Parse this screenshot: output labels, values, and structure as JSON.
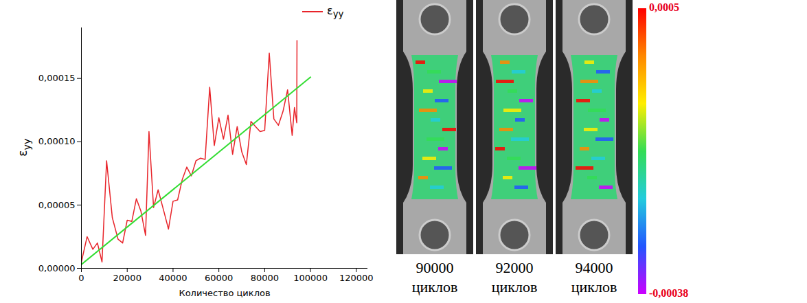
{
  "chart_data": {
    "type": "line",
    "x_label": "Количество циклов",
    "y_label": "εyy",
    "xlim": [
      0,
      125000
    ],
    "ylim": [
      0,
      0.00019
    ],
    "xticks": [
      0,
      20000,
      40000,
      60000,
      80000,
      100000,
      120000
    ],
    "yticks": [
      {
        "value": 0,
        "label": "0,00000"
      },
      {
        "value": 5e-05,
        "label": "0,00005"
      },
      {
        "value": 0.0001,
        "label": "0,00010"
      },
      {
        "value": 0.00015,
        "label": "0,00015"
      }
    ],
    "grid": false,
    "legend": "top-right",
    "series": [
      {
        "name": "εyy",
        "color": "#e8242a",
        "type": "line",
        "x": [
          0,
          2500,
          5000,
          7000,
          9000,
          11000,
          13500,
          16000,
          18000,
          20000,
          22000,
          24000,
          26000,
          28000,
          29500,
          31500,
          33500,
          36000,
          38000,
          40000,
          42000,
          44000,
          46000,
          48000,
          50000,
          52000,
          54000,
          56000,
          58000,
          60000,
          62000,
          64000,
          66000,
          68000,
          70000,
          72000,
          74000,
          76000,
          78000,
          80000,
          82000,
          84000,
          86000,
          88000,
          90000,
          92000,
          93000,
          94000,
          94100
        ],
        "values": [
          5e-06,
          2.5e-05,
          1.5e-05,
          2e-05,
          5e-06,
          8.5e-05,
          4e-05,
          2.3e-05,
          2e-05,
          3.8e-05,
          3.7e-05,
          5.5e-05,
          4.5e-05,
          2.6e-05,
          0.000108,
          4.8e-05,
          6.2e-05,
          4.5e-05,
          3.1e-05,
          5.3e-05,
          5.4e-05,
          7e-05,
          8e-05,
          7.3e-05,
          8.5e-05,
          8.7e-05,
          8.6e-05,
          0.000143,
          9.7e-05,
          0.000119,
          0.000102,
          0.000121,
          9e-05,
          0.000112,
          9.2e-05,
          8.2e-05,
          0.000116,
          0.000112,
          0.000108,
          0.000109,
          0.00017,
          0.000118,
          0.000113,
          0.000124,
          0.000141,
          0.000105,
          0.000127,
          0.000115,
          0.00018
        ]
      },
      {
        "color": "#33dd33",
        "type": "line",
        "x": [
          0,
          100000
        ],
        "values": [
          3e-06,
          0.000151
        ]
      }
    ]
  },
  "panels": [
    {
      "cycles": "90000",
      "unit": "циклов"
    },
    {
      "cycles": "92000",
      "unit": "циклов"
    },
    {
      "cycles": "94000",
      "unit": "циклов"
    }
  ],
  "colorbar": {
    "range": [
      -0.00038,
      0.0005
    ],
    "ticks": [
      {
        "value": 0.0005,
        "label": "0,0005"
      },
      {
        "value": -0.00038,
        "label": "-0,00038"
      }
    ]
  }
}
